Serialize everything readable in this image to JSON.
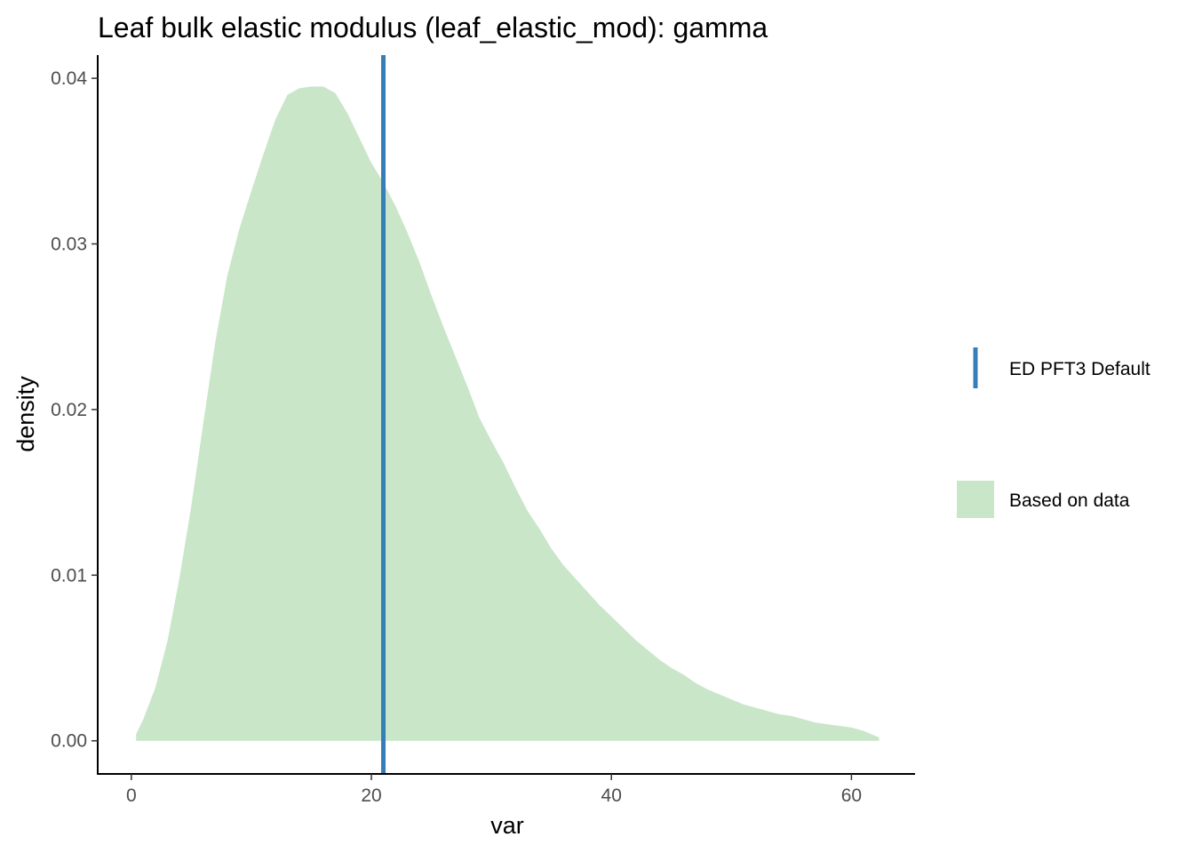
{
  "chart_data": {
    "type": "area",
    "title": "Leaf bulk elastic modulus (leaf_elastic_mod): gamma",
    "xlabel": "var",
    "ylabel": "density",
    "xlim": [
      -2.8,
      65.3
    ],
    "ylim": [
      -0.002,
      0.0414
    ],
    "x_ticks": [
      0,
      20,
      40,
      60
    ],
    "x_tick_labels": [
      "0",
      "20",
      "40",
      "60"
    ],
    "y_ticks": [
      0,
      0.01,
      0.02,
      0.03,
      0.04
    ],
    "y_tick_labels": [
      "0.00",
      "0.01",
      "0.02",
      "0.03",
      "0.04"
    ],
    "grid": false,
    "legend_position": "right",
    "series": [
      {
        "name": "Based on data",
        "kind": "density-area",
        "color": "#c9e6c9",
        "x": [
          0.4,
          1.0,
          2.0,
          3.0,
          4.0,
          5.0,
          6.0,
          7.0,
          8.0,
          9.0,
          10.0,
          11.0,
          12.0,
          13.0,
          14.0,
          15.0,
          16.0,
          17.0,
          18.0,
          19.0,
          20.0,
          21.0,
          22.0,
          23.0,
          24.0,
          25.0,
          26.0,
          27.0,
          28.0,
          29.0,
          30.0,
          31.0,
          32.0,
          33.0,
          34.0,
          35.0,
          36.0,
          37.0,
          38.0,
          39.0,
          40.0,
          41.0,
          42.0,
          43.0,
          44.0,
          45.0,
          46.0,
          47.0,
          48.0,
          49.0,
          50.0,
          51.0,
          52.0,
          53.0,
          54.0,
          55.0,
          56.0,
          57.0,
          58.0,
          59.0,
          60.0,
          61.0,
          62.3
        ],
        "y": [
          0.0004,
          0.0013,
          0.0032,
          0.006,
          0.0098,
          0.0142,
          0.0192,
          0.0241,
          0.0281,
          0.0309,
          0.0332,
          0.0354,
          0.0375,
          0.039,
          0.0394,
          0.0395,
          0.0395,
          0.0391,
          0.0379,
          0.0364,
          0.0349,
          0.0337,
          0.0323,
          0.0307,
          0.0289,
          0.0269,
          0.025,
          0.0232,
          0.0214,
          0.0195,
          0.0181,
          0.0168,
          0.0153,
          0.0139,
          0.0128,
          0.0116,
          0.0106,
          0.0098,
          0.009,
          0.0082,
          0.0075,
          0.0068,
          0.0061,
          0.0055,
          0.0049,
          0.0044,
          0.004,
          0.0035,
          0.0031,
          0.0028,
          0.0025,
          0.0022,
          0.002,
          0.0018,
          0.0016,
          0.0015,
          0.0013,
          0.0011,
          0.001,
          0.0009,
          0.0008,
          0.0006,
          0.0002
        ]
      },
      {
        "name": "ED PFT3 Default",
        "kind": "vline",
        "color": "#377eb8",
        "x": 21.0
      }
    ]
  }
}
